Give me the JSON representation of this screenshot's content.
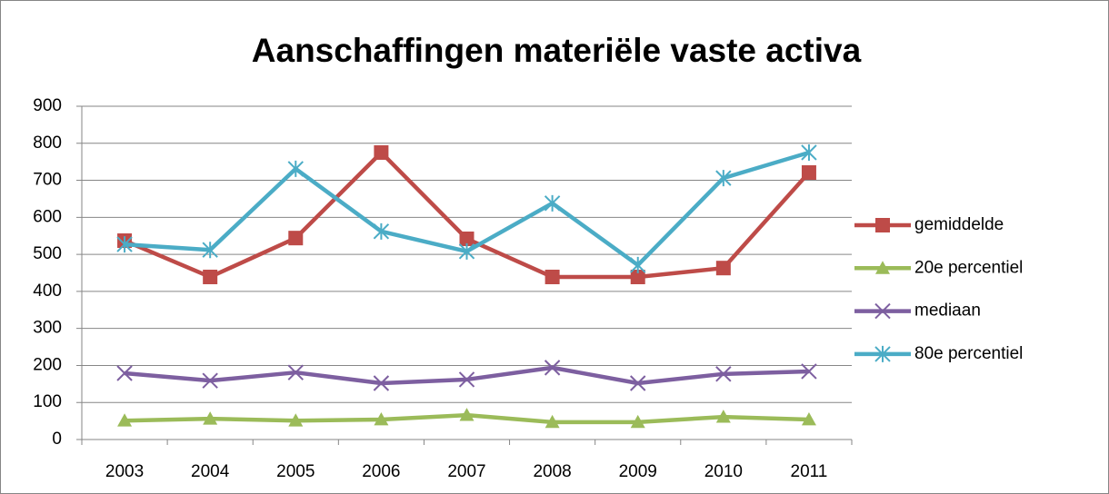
{
  "chart_data": {
    "type": "line",
    "title": "Aanschaffingen materiële vaste activa",
    "categories": [
      "2003",
      "2004",
      "2005",
      "2006",
      "2007",
      "2008",
      "2009",
      "2010",
      "2011"
    ],
    "series": [
      {
        "name": "gemiddelde",
        "color": "#be4b48",
        "marker": "square",
        "values": [
          537,
          439,
          544,
          775,
          542,
          439,
          439,
          463,
          721
        ]
      },
      {
        "name": "20e percentiel",
        "color": "#9bbb59",
        "marker": "triangle",
        "values": [
          51,
          56,
          51,
          54,
          66,
          47,
          47,
          61,
          54
        ]
      },
      {
        "name": "mediaan",
        "color": "#7d5fa0",
        "marker": "x",
        "values": [
          179,
          159,
          181,
          152,
          162,
          194,
          152,
          177,
          184
        ]
      },
      {
        "name": "80e percentiel",
        "color": "#4bacc6",
        "marker": "star",
        "values": [
          527,
          512,
          731,
          562,
          508,
          638,
          471,
          706,
          775
        ]
      }
    ],
    "ylim": [
      0,
      900
    ],
    "yticks": [
      0,
      100,
      200,
      300,
      400,
      500,
      600,
      700,
      800,
      900
    ],
    "grid": true,
    "legend": "right"
  }
}
